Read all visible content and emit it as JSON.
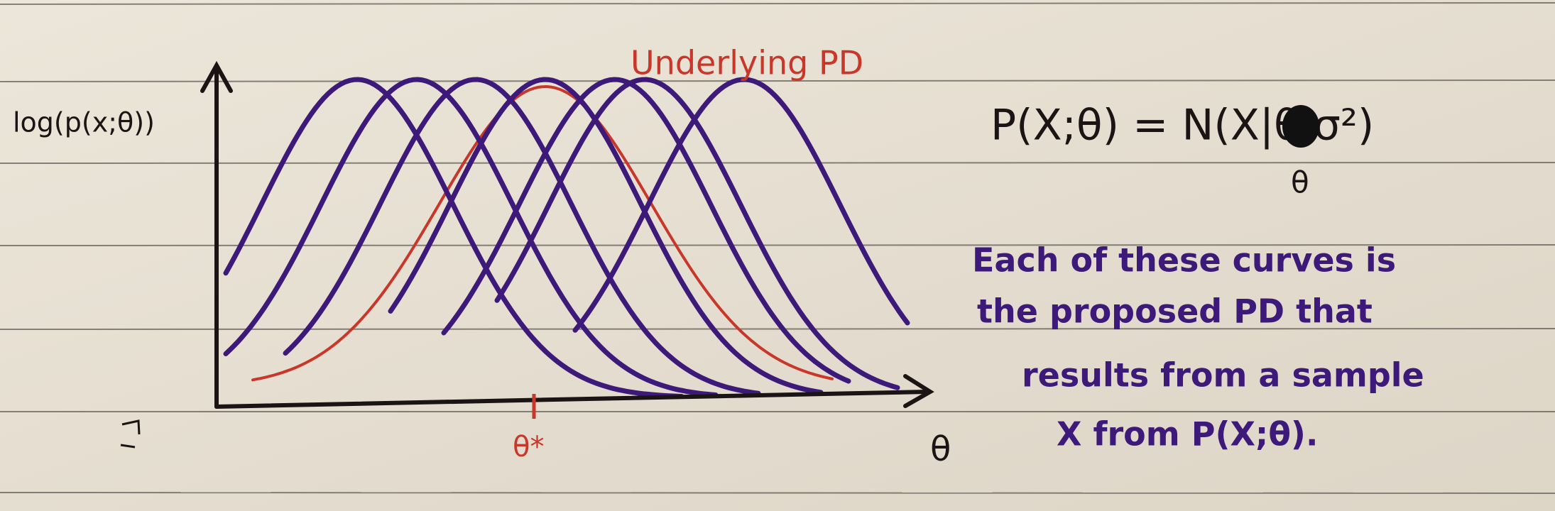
{
  "axis": {
    "y_label": "log(p(x;θ))",
    "x_label": "θ",
    "x_marker": "θ*"
  },
  "annotation": "Underlying PD",
  "formula": {
    "expression": "P(X;θ) = N(X|θ,σ²)",
    "correction": "θ"
  },
  "note": {
    "lines": [
      "Each of these curves is",
      "the proposed PD that",
      "results from a sample",
      "X from P(X;θ)."
    ]
  }
}
